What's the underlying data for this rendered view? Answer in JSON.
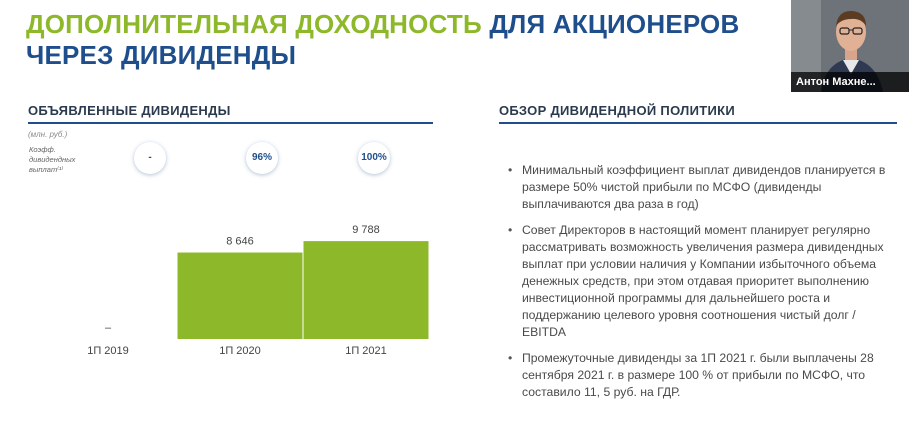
{
  "slide": {
    "title_green": "ДОПОЛНИТЕЛЬНАЯ ДОХОДНОСТЬ",
    "title_blue": "ДЛЯ АКЦИОНЕРОВ ЧЕРЕЗ ДИВИДЕНДЫ"
  },
  "video": {
    "participant_name": "Антон Махне..."
  },
  "left_section": {
    "heading": "ОБЪЯВЛЕННЫЕ ДИВИДЕНДЫ",
    "units": "(млн. руб.)",
    "ratio_label": "Коэфф. дивидендных выплат⁽¹⁾",
    "ratios": [
      "-",
      "96%",
      "100%"
    ]
  },
  "right_section": {
    "heading": "ОБЗОР ДИВИДЕНДНОЙ ПОЛИТИКИ",
    "bullets": [
      "Минимальный коэффициент выплат дивидендов планируется в размере 50% чистой прибыли по МСФО (дивиденды выплачиваются два раза в год)",
      "Совет Директоров в настоящий момент планирует регулярно рассматривать возможность увеличения размера дивидендных выплат при условии наличия у Компании избыточного объема денежных средств, при этом отдавая приоритет выполнению инвестиционной программы для дальнейшего роста и поддержанию целевого уровня соотношения чистый долг / EBITDA",
      "Промежуточные дивиденды за 1П 2021 г. были выплачены 28 сентября 2021 г. в размере 100 % от прибыли по МСФО, что составило 11, 5 руб. на ГДР."
    ]
  },
  "colors": {
    "accent_green": "#8db82a",
    "brand_blue": "#1f4e8c"
  },
  "chart_data": {
    "type": "bar",
    "categories": [
      "1П 2019",
      "1П 2020",
      "1П 2021"
    ],
    "values": [
      null,
      8646,
      9788
    ],
    "data_labels": [
      "–",
      "8 646",
      "9 788"
    ],
    "ylim": [
      0,
      10000
    ],
    "grid": false,
    "color": "#8db82a"
  }
}
